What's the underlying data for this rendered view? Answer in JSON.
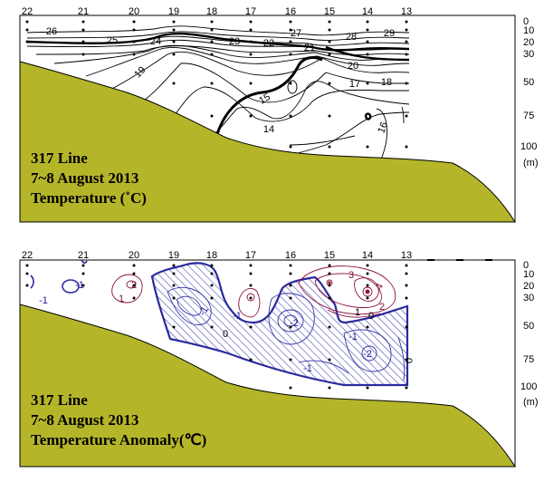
{
  "panels": [
    {
      "id": "temperature",
      "stations": [
        "22",
        "21",
        "20",
        "19",
        "18",
        "17",
        "16",
        "15",
        "14",
        "13"
      ],
      "depth_labels": [
        "0",
        "10",
        "20",
        "30",
        "50",
        "75",
        "100"
      ],
      "depth_unit": "(m)",
      "isotherm_labels": [
        "26",
        "25",
        "24",
        "23",
        "22",
        "27",
        "21",
        "28",
        "29",
        "20",
        "19",
        "18",
        "17",
        "15",
        "16",
        "14"
      ],
      "caption": [
        "317 Line",
        "7~8 August 2013",
        "Temperature (˚C)"
      ],
      "colors": {
        "seabed": "#b5b52a",
        "line": "#000000"
      }
    },
    {
      "id": "anomaly",
      "stations": [
        "22",
        "21",
        "20",
        "19",
        "18",
        "17",
        "16",
        "15",
        "14",
        "13"
      ],
      "depth_labels": [
        "0",
        "10",
        "20",
        "30",
        "50",
        "75",
        "100"
      ],
      "depth_unit": "(m)",
      "contour_labels": [
        "1",
        "-1",
        "-1",
        "2",
        "3",
        "4",
        "2",
        "1",
        "0",
        "-1",
        "-2",
        "-1",
        "-2",
        "-1",
        "0",
        "-1",
        "0"
      ],
      "caption": [
        "317 Line",
        "7~8 August 2013",
        "Temperature Anomaly(℃)"
      ],
      "colors": {
        "seabed": "#b5b52a",
        "negative": "#2a2a9e",
        "positive": "#8a1040",
        "hatch": "#3a3aa8"
      }
    }
  ]
}
